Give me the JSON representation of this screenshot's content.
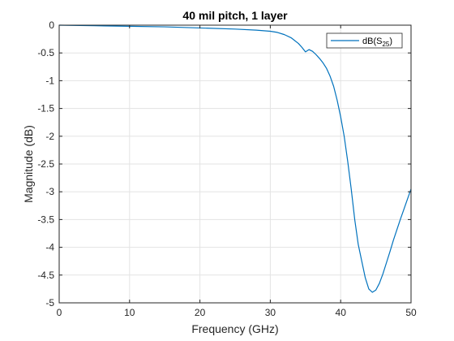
{
  "chart_data": {
    "type": "line",
    "title": "40 mil pitch, 1 layer",
    "xlabel": "Frequency (GHz)",
    "ylabel": "Magnitude (dB)",
    "xlim": [
      0,
      50
    ],
    "ylim": [
      -5,
      0
    ],
    "xticks": [
      0,
      10,
      20,
      30,
      40,
      50
    ],
    "yticks": [
      0,
      -0.5,
      -1,
      -1.5,
      -2,
      -2.5,
      -3,
      -3.5,
      -4,
      -4.5,
      -5
    ],
    "xtick_labels": [
      "0",
      "10",
      "20",
      "30",
      "40",
      "50"
    ],
    "ytick_labels": [
      "0",
      "-0.5",
      "-1",
      "-1.5",
      "-2",
      "-2.5",
      "-3",
      "-3.5",
      "-4",
      "-4.5",
      "-5"
    ],
    "grid": true,
    "legend_position": "top-right",
    "series": [
      {
        "name": "dB(S25)",
        "legend_main": "dB(S",
        "legend_sub": "25",
        "legend_tail": ")",
        "color": "#0072BD",
        "x": [
          0,
          5,
          10,
          15,
          20,
          25,
          28,
          30,
          31,
          32,
          33,
          34,
          34.5,
          35,
          35.5,
          36,
          36.5,
          37,
          37.5,
          38,
          38.5,
          39,
          39.5,
          40,
          40.5,
          41,
          41.5,
          42,
          42.5,
          43,
          43.5,
          44,
          44.5,
          45,
          45.5,
          46,
          46.5,
          47,
          47.5,
          48,
          48.5,
          49,
          49.5,
          50
        ],
        "y": [
          0,
          -0.01,
          -0.02,
          -0.03,
          -0.05,
          -0.07,
          -0.09,
          -0.11,
          -0.13,
          -0.17,
          -0.23,
          -0.33,
          -0.4,
          -0.48,
          -0.44,
          -0.47,
          -0.53,
          -0.6,
          -0.68,
          -0.78,
          -0.92,
          -1.1,
          -1.35,
          -1.65,
          -2.0,
          -2.45,
          -2.95,
          -3.5,
          -3.95,
          -4.25,
          -4.55,
          -4.75,
          -4.81,
          -4.77,
          -4.65,
          -4.48,
          -4.28,
          -4.08,
          -3.87,
          -3.68,
          -3.49,
          -3.31,
          -3.13,
          -2.95
        ]
      }
    ]
  }
}
